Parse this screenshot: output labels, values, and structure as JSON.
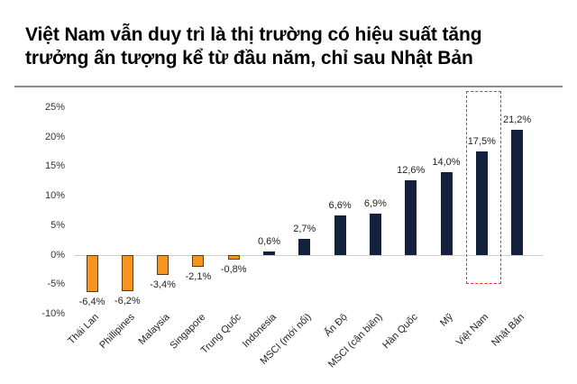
{
  "title": {
    "line1": "Việt Nam vẫn duy trì là thị trường có hiệu suất tăng",
    "line2": "trưởng ấn tượng kể từ đầu năm, chỉ sau Nhật Bản"
  },
  "colors": {
    "negative": "#f7941d",
    "positive": "#14213d",
    "highlight": "#e03030"
  },
  "chart_data": {
    "type": "bar",
    "title": "Việt Nam vẫn duy trì là thị trường có hiệu suất tăng trưởng ấn tượng kể từ đầu năm, chỉ sau Nhật Bản",
    "xlabel": "",
    "ylabel": "",
    "ylim": [
      -10,
      25
    ],
    "yticks": [
      "25%",
      "20%",
      "15%",
      "10%",
      "5%",
      "0%",
      "-5%",
      "-10%"
    ],
    "ytick_values": [
      25,
      20,
      15,
      10,
      5,
      0,
      -5,
      -10
    ],
    "grid": false,
    "legend": null,
    "categories": [
      "Thái Lan",
      "Phillipines",
      "Malaysia",
      "Singapore",
      "Trung Quốc",
      "Indonesia",
      "MSCI (mới nổi)",
      "Ấn Độ",
      "MSCI (cận biên)",
      "Hàn Quốc",
      "Mỹ",
      "Việt Nam",
      "Nhật Bản"
    ],
    "values": [
      -6.4,
      -6.2,
      -3.4,
      -2.1,
      -0.8,
      0.6,
      2.7,
      6.6,
      6.9,
      12.6,
      14.0,
      17.5,
      21.2
    ],
    "value_labels": [
      "-6,4%",
      "-6,2%",
      "-3,4%",
      "-2,1%",
      "-0,8%",
      "0,6%",
      "2,7%",
      "6,6%",
      "6,9%",
      "12,6%",
      "14,0%",
      "17,5%",
      "21,2%"
    ],
    "highlighted_category": "Việt Nam",
    "annotations": [
      "Red dashed box around Việt Nam bar"
    ]
  }
}
